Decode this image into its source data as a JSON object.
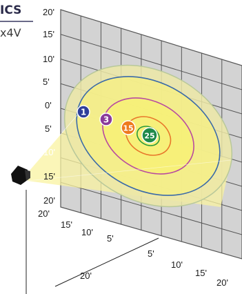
{
  "header": {
    "title_fragment": "ICS",
    "subtitle_fragment": "x4V"
  },
  "wall_y_ticks": [
    "20'",
    "15'",
    "10'",
    "5'",
    "0'",
    "5'",
    "10'",
    "15'",
    "20'"
  ],
  "floor_ticks_left": [
    "20'",
    "15'",
    "10'",
    "5'"
  ],
  "floor_ticks_right": [
    "5'",
    "10'",
    "15'",
    "20'"
  ],
  "floor_tick_center": "20'",
  "markers": [
    {
      "label": "1",
      "color": "#2e3f9a"
    },
    {
      "label": "3",
      "color": "#8a3a9a"
    },
    {
      "label": "15",
      "color": "#ee7a1e"
    },
    {
      "label": "25",
      "color": "#1f8a4a"
    }
  ],
  "ring_colors": [
    "#b8c89a",
    "#3a6aa8",
    "#b84aa0",
    "#e8762a",
    "#2a9a3a"
  ],
  "fill_colors": {
    "outer": "#ece8a6",
    "inner": "#f7f06a",
    "beam": "#faf3a0"
  }
}
